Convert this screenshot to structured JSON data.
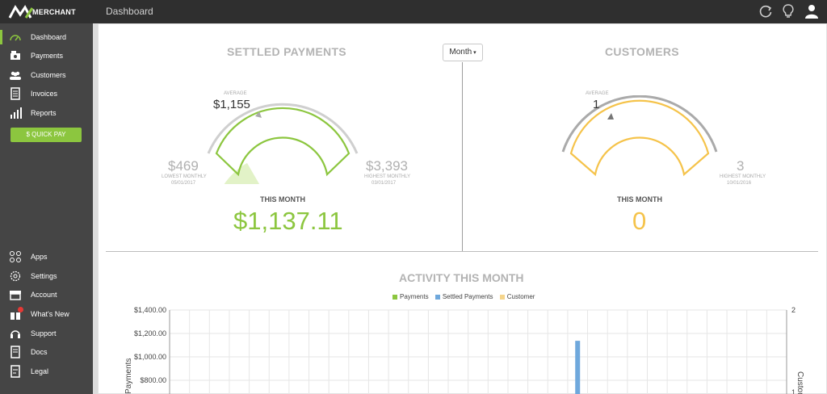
{
  "header": {
    "logo_text": "MERCHANT",
    "page_title": "Dashboard",
    "icons": [
      "refresh-icon",
      "lightbulb-icon",
      "user-icon"
    ]
  },
  "sidebar": {
    "items": [
      {
        "label": "Dashboard",
        "icon": "speedometer-icon"
      },
      {
        "label": "Payments",
        "icon": "payments-icon"
      },
      {
        "label": "Customers",
        "icon": "customers-icon"
      },
      {
        "label": "Invoices",
        "icon": "invoice-icon"
      },
      {
        "label": "Reports",
        "icon": "bar-chart-icon"
      }
    ],
    "quick_pay": "$ QUICK PAY",
    "bottom_items": [
      {
        "label": "Apps",
        "icon": "apps-icon"
      },
      {
        "label": "Settings",
        "icon": "gear-icon"
      },
      {
        "label": "Account",
        "icon": "store-icon"
      },
      {
        "label": "What's New",
        "icon": "gift-icon"
      },
      {
        "label": "Support",
        "icon": "headset-icon"
      },
      {
        "label": "Docs",
        "icon": "docs-icon"
      },
      {
        "label": "Legal",
        "icon": "legal-icon"
      }
    ]
  },
  "settled": {
    "title": "SETTLED PAYMENTS",
    "average_label": "AVERAGE",
    "average_value": "$1,155",
    "lowest_value": "$469",
    "lowest_label": "LOWEST MONTHLY",
    "lowest_date": "05/01/2017",
    "highest_value": "$3,393",
    "highest_label": "HIGHEST MONTHLY",
    "highest_date": "03/01/2017",
    "this_month_label": "THIS MONTH",
    "this_month_value": "$1,137.11",
    "gauge_fraction": 0.23
  },
  "period_select": {
    "value": "Month"
  },
  "customers": {
    "title": "CUSTOMERS",
    "average_label": "AVERAGE",
    "average_value": "1",
    "highest_value": "3",
    "highest_label": "HIGHEST MONTHLY",
    "highest_date": "10/01/2016",
    "this_month_label": "THIS MONTH",
    "this_month_value": "0",
    "gauge_fraction": 0
  },
  "activity": {
    "title": "ACTIVITY THIS MONTH",
    "legend": [
      {
        "label": "Payments",
        "color": "#8cc63f"
      },
      {
        "label": "Settled Payments",
        "color": "#6fa8dc"
      },
      {
        "label": "Customer",
        "color": "#f5d58c"
      }
    ]
  },
  "chart_data": {
    "type": "bar",
    "title": "ACTIVITY THIS MONTH",
    "ylabel": "Payments",
    "y2label": "Customers",
    "ylim_visible": [
      800,
      1400
    ],
    "y_ticks": [
      "$1,400.00",
      "$1,200.00",
      "$1,000.00",
      "$800.00"
    ],
    "y_tick_values": [
      1400,
      1200,
      1000,
      800
    ],
    "y2_ticks": [
      "2",
      "1"
    ],
    "y2_tick_values": [
      2,
      1
    ],
    "grid": true,
    "series": [
      {
        "name": "Settled Payments",
        "color": "#6fa8dc",
        "points": [
          {
            "index": 20,
            "value": 1137.11
          }
        ]
      }
    ],
    "categories_count": 31
  }
}
